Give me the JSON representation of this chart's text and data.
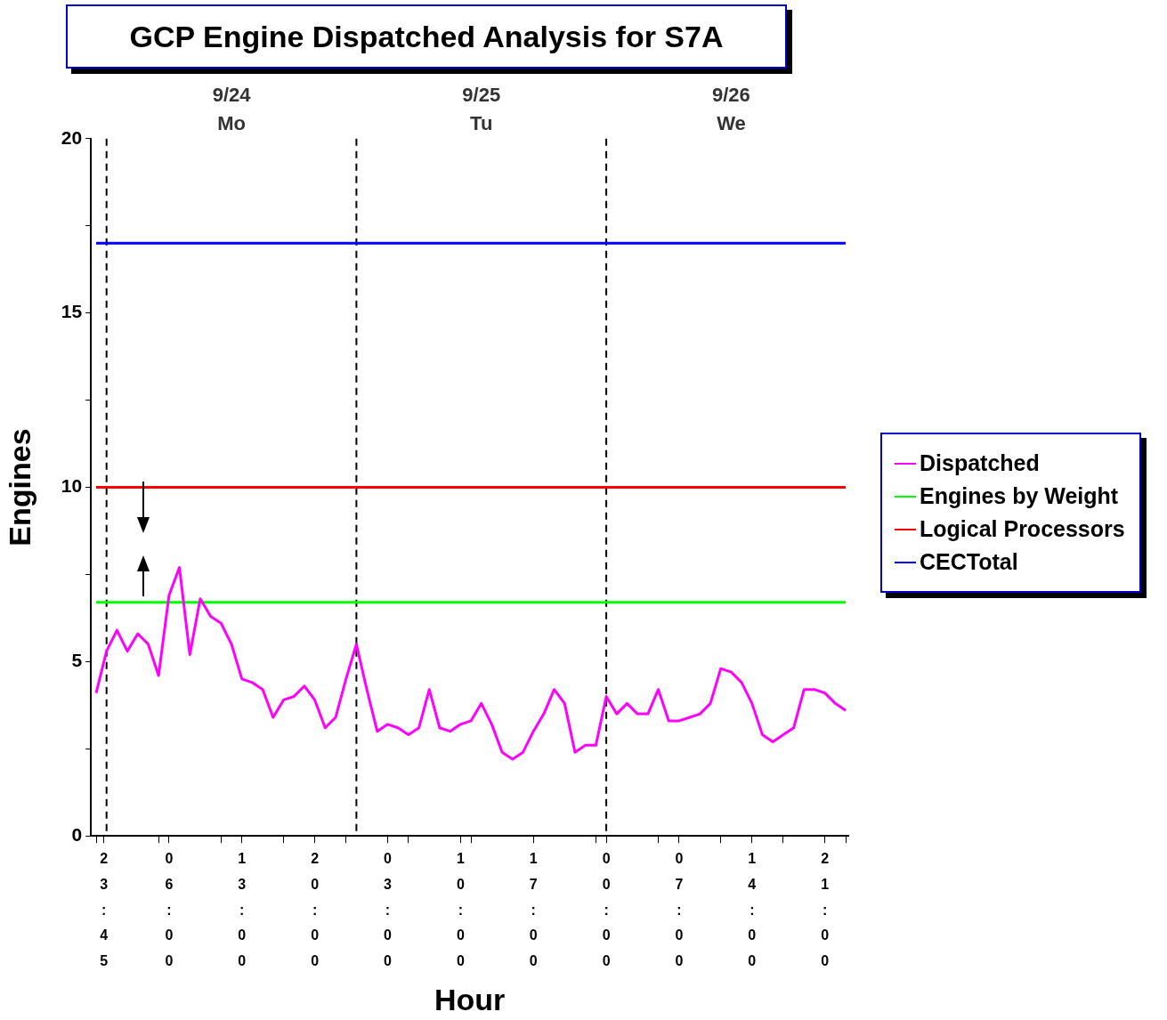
{
  "chart_data": {
    "type": "line",
    "title": "GCP Engine Dispatched Analysis for S7A",
    "xlabel": "Hour",
    "ylabel": "Engines",
    "xlim": [
      "--09-23T22:30",
      "--09-26T23:15"
    ],
    "ylim": [
      0,
      20
    ],
    "x2lim": [
      "--09-23T22:30",
      "--09-26T23:15"
    ],
    "xticks": [
      {
        "value": "--09-23T23:45",
        "label": "23:45"
      },
      {
        "value": "--09-24T06:00",
        "label": "06:00"
      },
      {
        "value": "--09-24T13:00",
        "label": "13:00"
      },
      {
        "value": "--09-24T20:00",
        "label": "20:00"
      },
      {
        "value": "--09-25T03:00",
        "label": "03:00"
      },
      {
        "value": "--09-25T10:00",
        "label": "10:00"
      },
      {
        "value": "--09-25T17:00",
        "label": "17:00"
      },
      {
        "value": "--09-26T00:00",
        "label": "00:00"
      },
      {
        "value": "--09-26T07:00",
        "label": "07:00"
      },
      {
        "value": "--09-26T14:00",
        "label": "14:00"
      },
      {
        "value": "--09-26T21:00",
        "label": "21:00"
      },
      {
        "value": "--09-23T23:00",
        "label": null
      },
      {
        "value": "--09-24T05:00",
        "label": null
      },
      {
        "value": "--09-24T11:00",
        "label": null
      },
      {
        "value": "--09-24T17:00",
        "label": null
      },
      {
        "value": "--09-24T23:00",
        "label": null
      },
      {
        "value": "--09-25T05:00",
        "label": null
      },
      {
        "value": "--09-25T11:00",
        "label": null
      },
      {
        "value": "--09-25T17:00",
        "label": null
      },
      {
        "value": "--09-25T23:00",
        "label": null
      },
      {
        "value": "--09-26T05:00",
        "label": null
      },
      {
        "value": "--09-26T11:00",
        "label": null
      },
      {
        "value": "--09-26T17:00",
        "label": null
      },
      {
        "value": "--09-26T23:00",
        "label": null
      }
    ],
    "x2ticks": [
      {
        "value": "--09-24T12:00",
        "label": "9/24 Mo"
      },
      {
        "value": "--09-25T12:00",
        "label": "9/25 Tu"
      },
      {
        "value": "--09-26T12:00",
        "label": "9/26 We"
      }
    ],
    "yticks": [
      0,
      5,
      10,
      15,
      20,
      {
        "value": 2.5,
        "label": null
      },
      {
        "value": 7.5,
        "label": null
      },
      {
        "value": 12.5,
        "label": null
      },
      {
        "value": 17.5,
        "label": null
      }
    ],
    "ref_lines": [
      {
        "axis": "x",
        "value": "--09-24T00:00",
        "color": "#000000",
        "line_style": "dashed"
      },
      {
        "axis": "x",
        "value": "--09-25T00:00",
        "color": "#000000",
        "line_style": "dashed"
      },
      {
        "axis": "x",
        "value": "--09-26T00:00",
        "color": "#000000",
        "line_style": "dashed"
      }
    ],
    "legend": "right",
    "marker": "none",
    "series": [
      {
        "name": "Dispatched",
        "color": "#ff00ff",
        "x": [
          "--09-23T23:00",
          "--09-24T00:00",
          "--09-24T01:00",
          "--09-24T02:00",
          "--09-24T03:00",
          "--09-24T04:00",
          "--09-24T05:00",
          "--09-24T06:00",
          "--09-24T07:00",
          "--09-24T08:00",
          "--09-24T09:00",
          "--09-24T10:00",
          "--09-24T11:00",
          "--09-24T12:00",
          "--09-24T13:00",
          "--09-24T14:00",
          "--09-24T15:00",
          "--09-24T16:00",
          "--09-24T17:00",
          "--09-24T18:00",
          "--09-24T19:00",
          "--09-24T20:00",
          "--09-24T21:00",
          "--09-24T22:00",
          "--09-24T23:00",
          "--09-25T00:00",
          "--09-25T01:00",
          "--09-25T02:00",
          "--09-25T03:00",
          "--09-25T04:00",
          "--09-25T05:00",
          "--09-25T06:00",
          "--09-25T07:00",
          "--09-25T08:00",
          "--09-25T09:00",
          "--09-25T10:00",
          "--09-25T11:00",
          "--09-25T12:00",
          "--09-25T13:00",
          "--09-25T14:00",
          "--09-25T15:00",
          "--09-25T16:00",
          "--09-25T17:00",
          "--09-25T18:00",
          "--09-25T19:00",
          "--09-25T20:00",
          "--09-25T21:00",
          "--09-25T22:00",
          "--09-25T23:00",
          "--09-26T00:00",
          "--09-26T01:00",
          "--09-26T02:00",
          "--09-26T03:00",
          "--09-26T04:00",
          "--09-26T05:00",
          "--09-26T06:00",
          "--09-26T07:00",
          "--09-26T08:00",
          "--09-26T09:00",
          "--09-26T10:00",
          "--09-26T11:00",
          "--09-26T12:00",
          "--09-26T13:00",
          "--09-26T14:00",
          "--09-26T15:00",
          "--09-26T16:00",
          "--09-26T17:00",
          "--09-26T18:00",
          "--09-26T19:00",
          "--09-26T20:00",
          "--09-26T21:00",
          "--09-26T22:00",
          "--09-26T23:00"
        ],
        "values": [
          4.1,
          5.3,
          5.9,
          5.3,
          5.8,
          5.5,
          4.6,
          6.9,
          7.7,
          5.2,
          6.8,
          6.3,
          6.1,
          5.5,
          4.5,
          4.4,
          4.2,
          3.4,
          3.9,
          4.0,
          4.3,
          3.9,
          3.1,
          3.4,
          4.5,
          5.5,
          4.2,
          3.0,
          3.2,
          3.1,
          2.9,
          3.1,
          4.2,
          3.1,
          3.0,
          3.2,
          3.3,
          3.8,
          3.2,
          2.4,
          2.2,
          2.4,
          3.0,
          3.5,
          4.2,
          3.8,
          2.4,
          2.6,
          2.6,
          4.0,
          3.5,
          3.8,
          3.5,
          3.5,
          4.2,
          3.3,
          3.3,
          3.4,
          3.5,
          3.8,
          4.8,
          4.7,
          4.4,
          3.8,
          2.9,
          2.7,
          2.9,
          3.1,
          4.2,
          4.2,
          4.1,
          3.8,
          3.6
        ]
      },
      {
        "name": "Engines by Weight",
        "color": "#00ff00",
        "x": [
          "--09-23T23:00",
          "--09-26T23:00"
        ],
        "values": [
          6.7,
          6.7
        ]
      },
      {
        "name": "Logical Processors",
        "color": "#ff0000",
        "x": [
          "--09-23T23:00",
          "--09-26T23:00"
        ],
        "values": [
          10,
          10
        ]
      },
      {
        "name": "CECTotal",
        "color": "#0000ff",
        "x": [
          "--09-23T23:00",
          "--09-26T23:00"
        ],
        "values": [
          17,
          17
        ]
      }
    ]
  }
}
